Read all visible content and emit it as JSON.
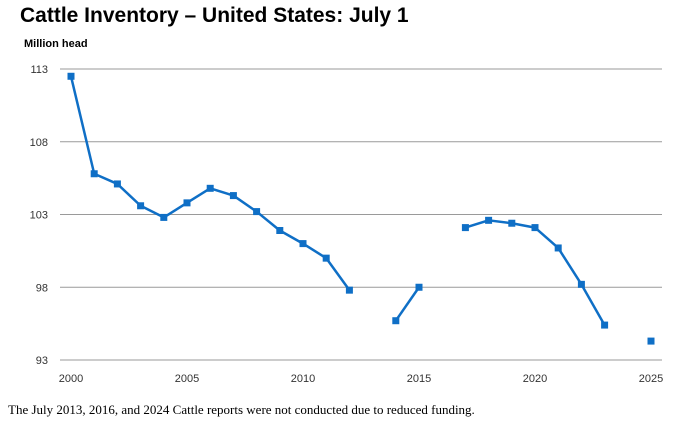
{
  "chart_data": {
    "type": "line",
    "title": "Cattle Inventory – United States: July 1",
    "ylabel": "Million head",
    "xlabel": "",
    "note": "The July 2013, 2016, and 2024 Cattle reports were not conducted due to reduced funding.",
    "xlim": [
      2000,
      2025
    ],
    "ylim": [
      93,
      113
    ],
    "xticks": [
      2000,
      2005,
      2010,
      2015,
      2020,
      2025
    ],
    "yticks": [
      93,
      98,
      103,
      108,
      113
    ],
    "grid": "horizontal",
    "color": "#0F6FC6",
    "series": [
      {
        "name": "Cattle inventory July 1",
        "points": [
          [
            2000,
            112.5
          ],
          [
            2001,
            105.8
          ],
          [
            2002,
            105.1
          ],
          [
            2003,
            103.6
          ],
          [
            2004,
            102.8
          ],
          [
            2005,
            103.8
          ],
          [
            2006,
            104.8
          ],
          [
            2007,
            104.3
          ],
          [
            2008,
            103.2
          ],
          [
            2009,
            101.9
          ],
          [
            2010,
            101.0
          ],
          [
            2011,
            100.0
          ],
          [
            2012,
            97.8
          ],
          [
            2013,
            null
          ],
          [
            2014,
            95.7
          ],
          [
            2015,
            98.0
          ],
          [
            2016,
            null
          ],
          [
            2017,
            102.1
          ],
          [
            2018,
            102.6
          ],
          [
            2019,
            102.4
          ],
          [
            2020,
            102.1
          ],
          [
            2021,
            100.7
          ],
          [
            2022,
            98.2
          ],
          [
            2023,
            95.4
          ],
          [
            2024,
            null
          ],
          [
            2025,
            94.3
          ]
        ]
      }
    ]
  }
}
